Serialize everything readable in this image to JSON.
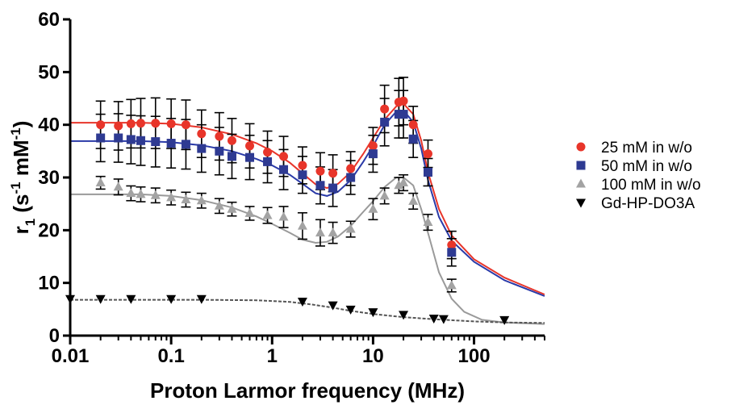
{
  "chart_data": {
    "type": "scatter",
    "xscale": "log",
    "xlim": [
      0.01,
      500
    ],
    "ylim": [
      0,
      60
    ],
    "xlabel": "Proton Larmor frequency (MHz)",
    "ylabel": {
      "base": "r",
      "sub": "1",
      "mid": " (s",
      "sup1": "-1",
      "mid2": " mM",
      "sup2": "-1",
      "end": ")"
    },
    "x_ticks": [
      {
        "value": 0.01,
        "label": "0.01"
      },
      {
        "value": 0.1,
        "label": "0.1"
      },
      {
        "value": 1,
        "label": "1"
      },
      {
        "value": 10,
        "label": "10"
      },
      {
        "value": 100,
        "label": "100"
      }
    ],
    "y_ticks": [
      {
        "value": 0,
        "label": "0"
      },
      {
        "value": 10,
        "label": "10"
      },
      {
        "value": 20,
        "label": "20"
      },
      {
        "value": 30,
        "label": "30"
      },
      {
        "value": 40,
        "label": "40"
      },
      {
        "value": 50,
        "label": "50"
      },
      {
        "value": 60,
        "label": "60"
      }
    ],
    "legend_position": "right",
    "series": [
      {
        "name": "25 mM in w/o",
        "marker": "circle",
        "color": "#e8352a",
        "x": [
          0.02,
          0.03,
          0.04,
          0.05,
          0.07,
          0.1,
          0.14,
          0.2,
          0.3,
          0.4,
          0.6,
          0.9,
          1.3,
          2,
          3,
          4,
          6,
          10,
          13,
          18,
          20,
          25,
          35,
          60
        ],
        "y": [
          40,
          39.8,
          40.2,
          40.3,
          40.3,
          40.2,
          40,
          38.3,
          37.8,
          37,
          36,
          34.8,
          34,
          32.3,
          31.2,
          30.8,
          31.7,
          36,
          43,
          44.3,
          44.5,
          40,
          34.5,
          17.2
        ],
        "err": [
          4.5,
          4.6,
          4.6,
          4.7,
          4.8,
          4.7,
          4.7,
          4.5,
          4.5,
          4.2,
          4.2,
          4.0,
          3.8,
          3.5,
          3.5,
          3.5,
          3.2,
          3.5,
          4.5,
          4.5,
          4.5,
          3.5,
          2.6,
          2.6
        ],
        "fit": [
          [
            0.01,
            40.4
          ],
          [
            0.05,
            40.4
          ],
          [
            0.1,
            40.2
          ],
          [
            0.2,
            39.5
          ],
          [
            0.4,
            38.2
          ],
          [
            0.7,
            36.5
          ],
          [
            1,
            35
          ],
          [
            1.5,
            32.8
          ],
          [
            2,
            30.8
          ],
          [
            2.7,
            28.7
          ],
          [
            3.5,
            28
          ],
          [
            4.5,
            28.8
          ],
          [
            6,
            31
          ],
          [
            8,
            34.5
          ],
          [
            10,
            37.5
          ],
          [
            13,
            41
          ],
          [
            17,
            43.5
          ],
          [
            20,
            44
          ],
          [
            25,
            42
          ],
          [
            30,
            37
          ],
          [
            35,
            31
          ],
          [
            45,
            24
          ],
          [
            60,
            19
          ],
          [
            100,
            14.5
          ],
          [
            200,
            11
          ],
          [
            500,
            7.8
          ]
        ]
      },
      {
        "name": "50 mM in w/o",
        "marker": "square",
        "color": "#2e3a92",
        "x": [
          0.02,
          0.03,
          0.04,
          0.05,
          0.07,
          0.1,
          0.14,
          0.2,
          0.3,
          0.4,
          0.6,
          0.9,
          1.3,
          2,
          3,
          4,
          6,
          10,
          13,
          18,
          20,
          25,
          35,
          60
        ],
        "y": [
          37.5,
          37.5,
          37.2,
          37,
          36.8,
          36.5,
          36.3,
          35.5,
          35,
          34,
          33.8,
          33,
          31.5,
          30.5,
          28.5,
          28,
          30,
          34.5,
          40.5,
          42,
          42,
          37.3,
          31,
          15.8
        ],
        "err": [
          4.5,
          4.6,
          4.6,
          4.7,
          4.8,
          4.7,
          4.7,
          4.5,
          4.5,
          4.2,
          4.2,
          4.0,
          3.8,
          3.5,
          3.5,
          3.5,
          3.2,
          3.5,
          4.5,
          4.5,
          4.5,
          3.5,
          2.6,
          2.6
        ],
        "fit": [
          [
            0.01,
            36.9
          ],
          [
            0.05,
            36.9
          ],
          [
            0.1,
            36.7
          ],
          [
            0.2,
            36.1
          ],
          [
            0.4,
            35
          ],
          [
            0.7,
            33.5
          ],
          [
            1,
            32.3
          ],
          [
            1.5,
            30.5
          ],
          [
            2,
            28.8
          ],
          [
            2.7,
            27
          ],
          [
            3.5,
            26.5
          ],
          [
            4.5,
            27.3
          ],
          [
            6,
            29.5
          ],
          [
            8,
            33
          ],
          [
            10,
            36
          ],
          [
            13,
            40
          ],
          [
            17,
            42.5
          ],
          [
            20,
            42.7
          ],
          [
            25,
            40.5
          ],
          [
            30,
            35.5
          ],
          [
            35,
            29.5
          ],
          [
            45,
            22.5
          ],
          [
            60,
            18
          ],
          [
            100,
            14
          ],
          [
            200,
            10.5
          ],
          [
            500,
            7.5
          ]
        ]
      },
      {
        "name": "100 mM in w/o",
        "marker": "triangle-up",
        "color": "#a3a3a3",
        "x": [
          0.02,
          0.03,
          0.04,
          0.05,
          0.07,
          0.1,
          0.14,
          0.2,
          0.3,
          0.4,
          0.6,
          0.9,
          1.3,
          2,
          3,
          4,
          6,
          10,
          13,
          18,
          20,
          25,
          35,
          60
        ],
        "y": [
          29,
          28.2,
          27,
          26.8,
          26.6,
          26.2,
          25.8,
          25.6,
          24.6,
          24,
          23.2,
          22.8,
          22.5,
          20.8,
          19.5,
          19.5,
          20.2,
          24,
          26.5,
          28.5,
          29,
          25.5,
          21.5,
          9.5
        ],
        "err": [
          1.2,
          1.5,
          1.4,
          1.4,
          1.4,
          1.4,
          1.4,
          1.4,
          1.4,
          1.3,
          1.3,
          1.5,
          2,
          2.5,
          2.5,
          2,
          1.5,
          2,
          1.5,
          1.5,
          1.5,
          1.5,
          1.5,
          1.2
        ],
        "fit": [
          [
            0.01,
            26.8
          ],
          [
            0.05,
            26.8
          ],
          [
            0.1,
            26.5
          ],
          [
            0.2,
            25.7
          ],
          [
            0.4,
            24.3
          ],
          [
            0.7,
            22.6
          ],
          [
            1,
            21.2
          ],
          [
            1.5,
            19.5
          ],
          [
            2,
            18.2
          ],
          [
            2.7,
            17.6
          ],
          [
            3.5,
            17.8
          ],
          [
            4.5,
            18.8
          ],
          [
            6,
            20.8
          ],
          [
            8,
            23.5
          ],
          [
            10,
            25.5
          ],
          [
            13,
            28.2
          ],
          [
            17,
            30
          ],
          [
            20,
            30
          ],
          [
            25,
            28.5
          ],
          [
            30,
            24
          ],
          [
            35,
            19.5
          ],
          [
            45,
            12
          ],
          [
            60,
            7
          ],
          [
            80,
            4.5
          ],
          [
            120,
            3
          ],
          [
            200,
            2.5
          ],
          [
            500,
            2.2
          ]
        ]
      },
      {
        "name": "Gd-HP-DO3A",
        "marker": "triangle-down",
        "color": "#000000",
        "x": [
          0.01,
          0.02,
          0.04,
          0.1,
          0.2,
          2,
          4,
          6,
          10,
          20,
          40,
          50,
          200
        ],
        "y": [
          7,
          7,
          7,
          7,
          7,
          6.5,
          5.8,
          5,
          4.5,
          4,
          3.3,
          3.2,
          3
        ],
        "err": [
          0,
          0,
          0,
          0,
          0,
          0,
          0,
          0,
          0,
          0,
          0,
          0,
          0
        ],
        "fit": [
          [
            0.01,
            6.8
          ],
          [
            0.2,
            6.8
          ],
          [
            0.7,
            6.7
          ],
          [
            1.5,
            6.4
          ],
          [
            2.5,
            5.9
          ],
          [
            4,
            5.3
          ],
          [
            6,
            4.7
          ],
          [
            10,
            4.1
          ],
          [
            20,
            3.5
          ],
          [
            40,
            3.1
          ],
          [
            100,
            2.7
          ],
          [
            200,
            2.5
          ],
          [
            500,
            2.4
          ]
        ]
      }
    ]
  }
}
